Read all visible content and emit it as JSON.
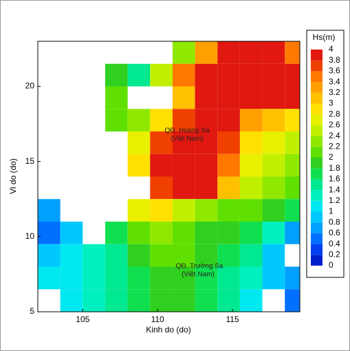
{
  "chart_data": {
    "type": "heatmap",
    "x_label": "Kinh do (do)",
    "y_label": "Vi do (do)",
    "colorbar_title": "Hs(m)",
    "xlim": [
      102,
      119.5
    ],
    "ylim": [
      5,
      23
    ],
    "xticks": [
      105,
      110,
      115
    ],
    "yticks": [
      5,
      10,
      15,
      20
    ],
    "x": [
      102.75,
      104.25,
      105.75,
      107.25,
      108.75,
      110.25,
      111.75,
      113.25,
      114.75,
      116.25,
      117.75,
      119.25
    ],
    "y": [
      22.25,
      20.75,
      19.25,
      17.75,
      16.25,
      14.75,
      13.25,
      11.75,
      10.25,
      8.75,
      7.25,
      5.75
    ],
    "values": [
      [
        null,
        null,
        null,
        null,
        null,
        null,
        2.2,
        3.2,
        3.8,
        4,
        4,
        3.4
      ],
      [
        null,
        null,
        null,
        1.8,
        1.4,
        2.4,
        3.4,
        4,
        4,
        4,
        4,
        3.8
      ],
      [
        null,
        null,
        null,
        2.0,
        null,
        null,
        3.0,
        3.8,
        4,
        4,
        4,
        3.8
      ],
      [
        null,
        null,
        null,
        2.0,
        2.2,
        2.8,
        3.6,
        4,
        3.8,
        3.2,
        3.0,
        2.8
      ],
      [
        null,
        null,
        null,
        null,
        2.6,
        3.6,
        4,
        4,
        3.6,
        2.8,
        2.6,
        2.4
      ],
      [
        null,
        null,
        null,
        null,
        2.8,
        3.8,
        4,
        4,
        3.4,
        2.6,
        2.4,
        2.2
      ],
      [
        null,
        null,
        null,
        null,
        null,
        3.6,
        4,
        3.8,
        3.0,
        2.4,
        2.2,
        2.0
      ],
      [
        0.6,
        null,
        null,
        null,
        2.6,
        2.8,
        2.4,
        2.2,
        2.0,
        2.0,
        1.8,
        1.6
      ],
      [
        0.4,
        0.8,
        null,
        1.6,
        2.0,
        2.2,
        2.0,
        1.8,
        1.8,
        1.6,
        1.2,
        0.6
      ],
      [
        0.8,
        1.0,
        1.2,
        1.4,
        1.8,
        2.0,
        2.0,
        1.8,
        1.6,
        1.4,
        0.8,
        null
      ],
      [
        1.0,
        1.0,
        1.2,
        1.4,
        1.6,
        1.8,
        1.8,
        1.6,
        1.4,
        1.2,
        0.8,
        0.6
      ],
      [
        null,
        1.0,
        1.2,
        1.4,
        1.6,
        1.8,
        1.8,
        1.6,
        1.4,
        1.0,
        null,
        0.4
      ]
    ],
    "colorbar_ticks": [
      0,
      0.2,
      0.4,
      0.6,
      0.8,
      1,
      1.2,
      1.4,
      1.6,
      1.8,
      2,
      2.2,
      2.4,
      2.6,
      2.8,
      3,
      3.2,
      3.4,
      3.6,
      3.8,
      4
    ],
    "colors": [
      "#0020d0",
      "#0040f0",
      "#0070ff",
      "#00a0ff",
      "#00c8ff",
      "#00e8f0",
      "#00f0c0",
      "#00e890",
      "#10e050",
      "#30d020",
      "#60e000",
      "#90e800",
      "#c0f000",
      "#e8f000",
      "#ffe000",
      "#ffc000",
      "#ffa000",
      "#ff7800",
      "#f04000",
      "#e01810"
    ],
    "annotations": [
      "QĐ. Hoàng Sa",
      "(Việt Nam)",
      "QĐ. Trường Sa",
      "(Việt Nam)"
    ]
  }
}
